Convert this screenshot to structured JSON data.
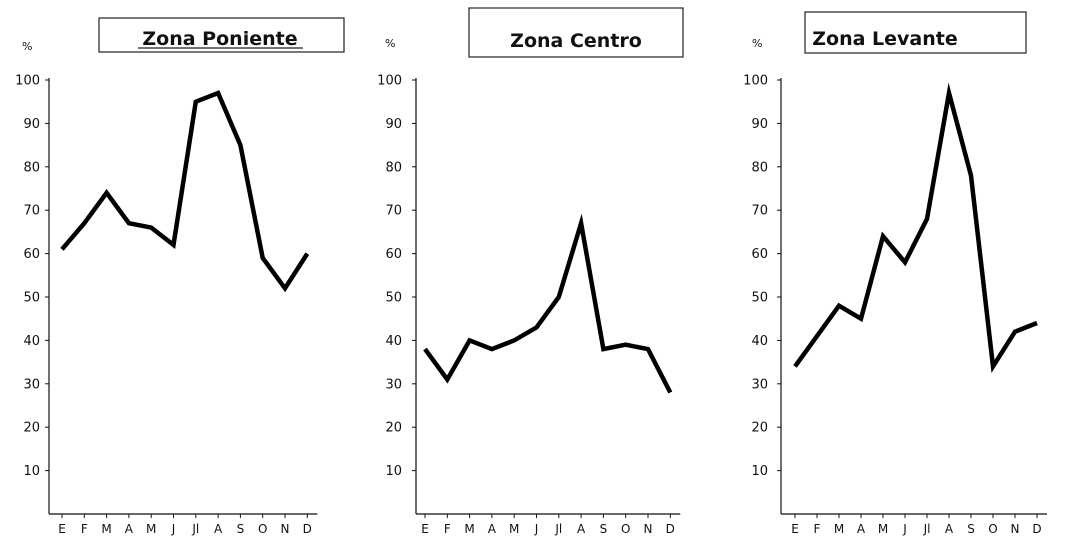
{
  "chart_data": [
    {
      "type": "line",
      "title": "Zona Poniente",
      "ylabel": "%",
      "ylim": [
        0,
        100
      ],
      "yticks": [
        10,
        20,
        30,
        40,
        50,
        60,
        70,
        80,
        90,
        100
      ],
      "categories": [
        "E",
        "F",
        "M",
        "A",
        "M",
        "J",
        "Jl",
        "A",
        "S",
        "O",
        "N",
        "D"
      ],
      "values": [
        61,
        67,
        74,
        67,
        66,
        62,
        95,
        97,
        85,
        59,
        52,
        60
      ],
      "line_color": "#000000",
      "grid": false
    },
    {
      "type": "line",
      "title": "Zona Centro",
      "ylabel": "%",
      "ylim": [
        0,
        100
      ],
      "yticks": [
        10,
        20,
        30,
        40,
        50,
        60,
        70,
        80,
        90,
        100
      ],
      "categories": [
        "E",
        "F",
        "M",
        "A",
        "M",
        "J",
        "Jl",
        "A",
        "S",
        "O",
        "N",
        "D"
      ],
      "values": [
        38,
        31,
        40,
        38,
        40,
        43,
        50,
        67,
        38,
        39,
        38,
        28
      ],
      "line_color": "#000000",
      "grid": false
    },
    {
      "type": "line",
      "title": "Zona Levante",
      "ylabel": "%",
      "ylim": [
        0,
        100
      ],
      "yticks": [
        10,
        20,
        30,
        40,
        50,
        60,
        70,
        80,
        90,
        100
      ],
      "categories": [
        "E",
        "F",
        "M",
        "A",
        "M",
        "J",
        "Jl",
        "A",
        "S",
        "O",
        "N",
        "D"
      ],
      "values": [
        34,
        41,
        48,
        45,
        64,
        58,
        68,
        97,
        78,
        34,
        42,
        44
      ],
      "line_color": "#000000",
      "grid": false
    }
  ]
}
